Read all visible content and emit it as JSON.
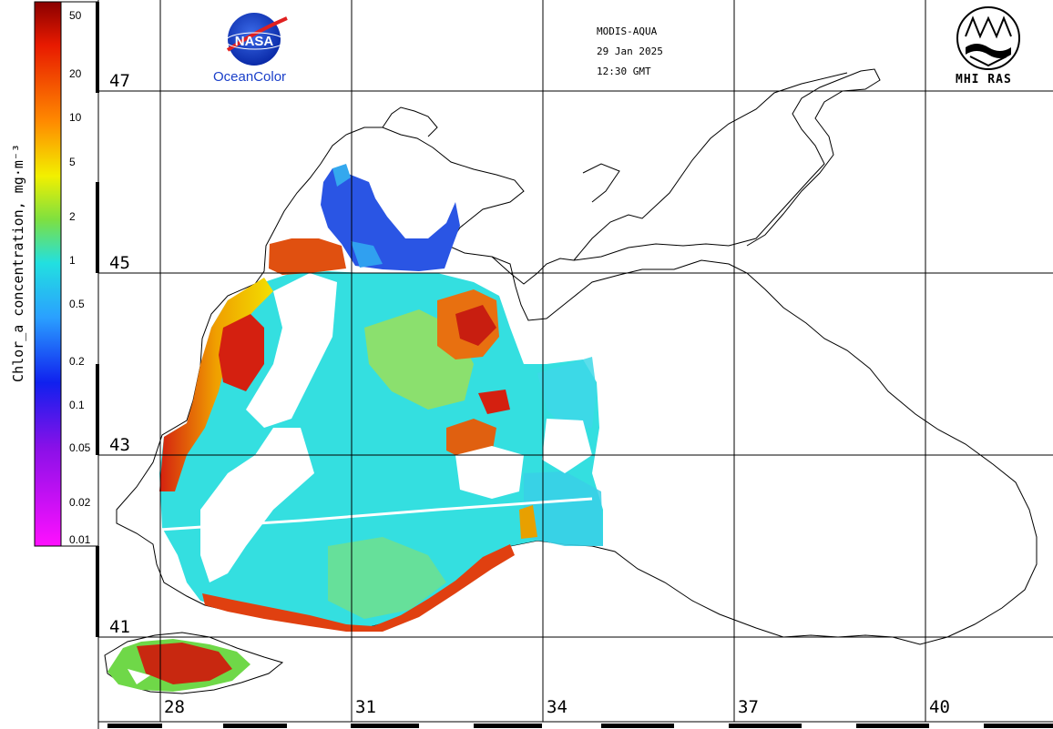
{
  "header": {
    "sensor": "MODIS-AQUA",
    "date": "29 Jan 2025",
    "time": "12:30 GMT"
  },
  "logos": {
    "left_logo_text": "NASA",
    "left_caption": "OceanColor",
    "right_caption": "MHI RAS"
  },
  "colorbar": {
    "title": "Chlor_a concentration, mg·m⁻³",
    "tick_labels": [
      "50",
      "20",
      "10",
      "5",
      "2",
      "1",
      "0.5",
      "0.2",
      "0.1",
      "0.05",
      "0.02",
      "0.01"
    ]
  },
  "grid": {
    "latitude_labels": [
      "47",
      "45",
      "43",
      "41"
    ],
    "longitude_labels": [
      "28",
      "31",
      "34",
      "37",
      "40"
    ]
  },
  "colors": {
    "ocean_low": "#1e3de0",
    "ocean_mid": "#2ee6ee",
    "ocean_high": "#d42010",
    "coastline": "#000000",
    "nasa_blue": "#1a3fc9"
  }
}
